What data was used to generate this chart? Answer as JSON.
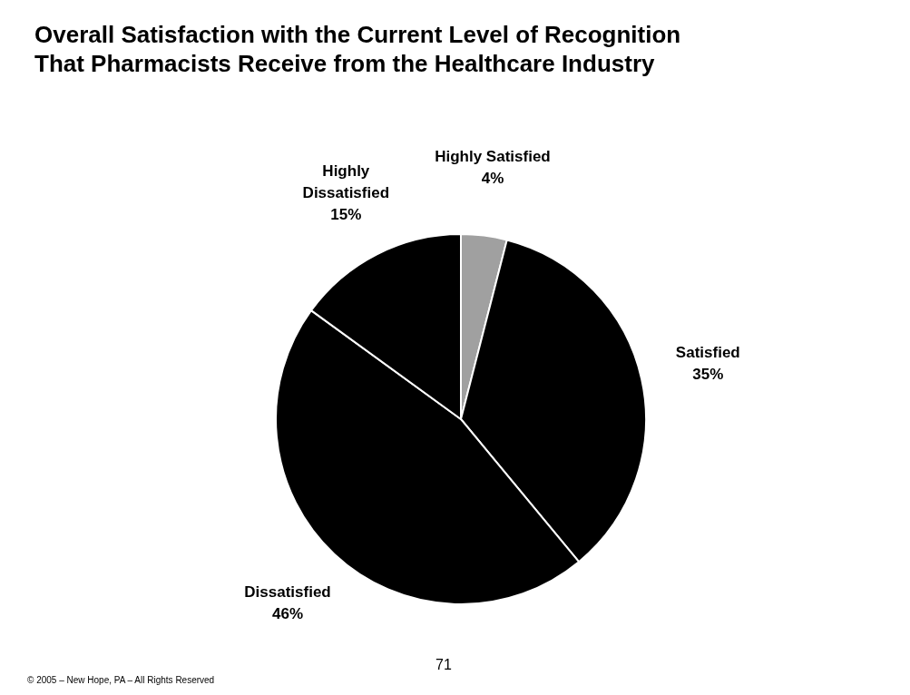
{
  "chart_data": {
    "type": "pie",
    "title": "Overall Satisfaction with the Current Level of Recognition That Pharmacists Receive from the Healthcare Industry",
    "categories": [
      "Highly Satisfied",
      "Satisfied",
      "Dissatisfied",
      "Highly Dissatisfied"
    ],
    "values": [
      4,
      35,
      46,
      15
    ],
    "colors": [
      "#a0a0a0",
      "#000000",
      "#000000",
      "#000000"
    ],
    "value_labels": [
      "4%",
      "35%",
      "46%",
      "15%"
    ],
    "legend": false,
    "annotations": [
      "71",
      "© 2005 – New Hope, PA – All Rights Reserved"
    ]
  }
}
